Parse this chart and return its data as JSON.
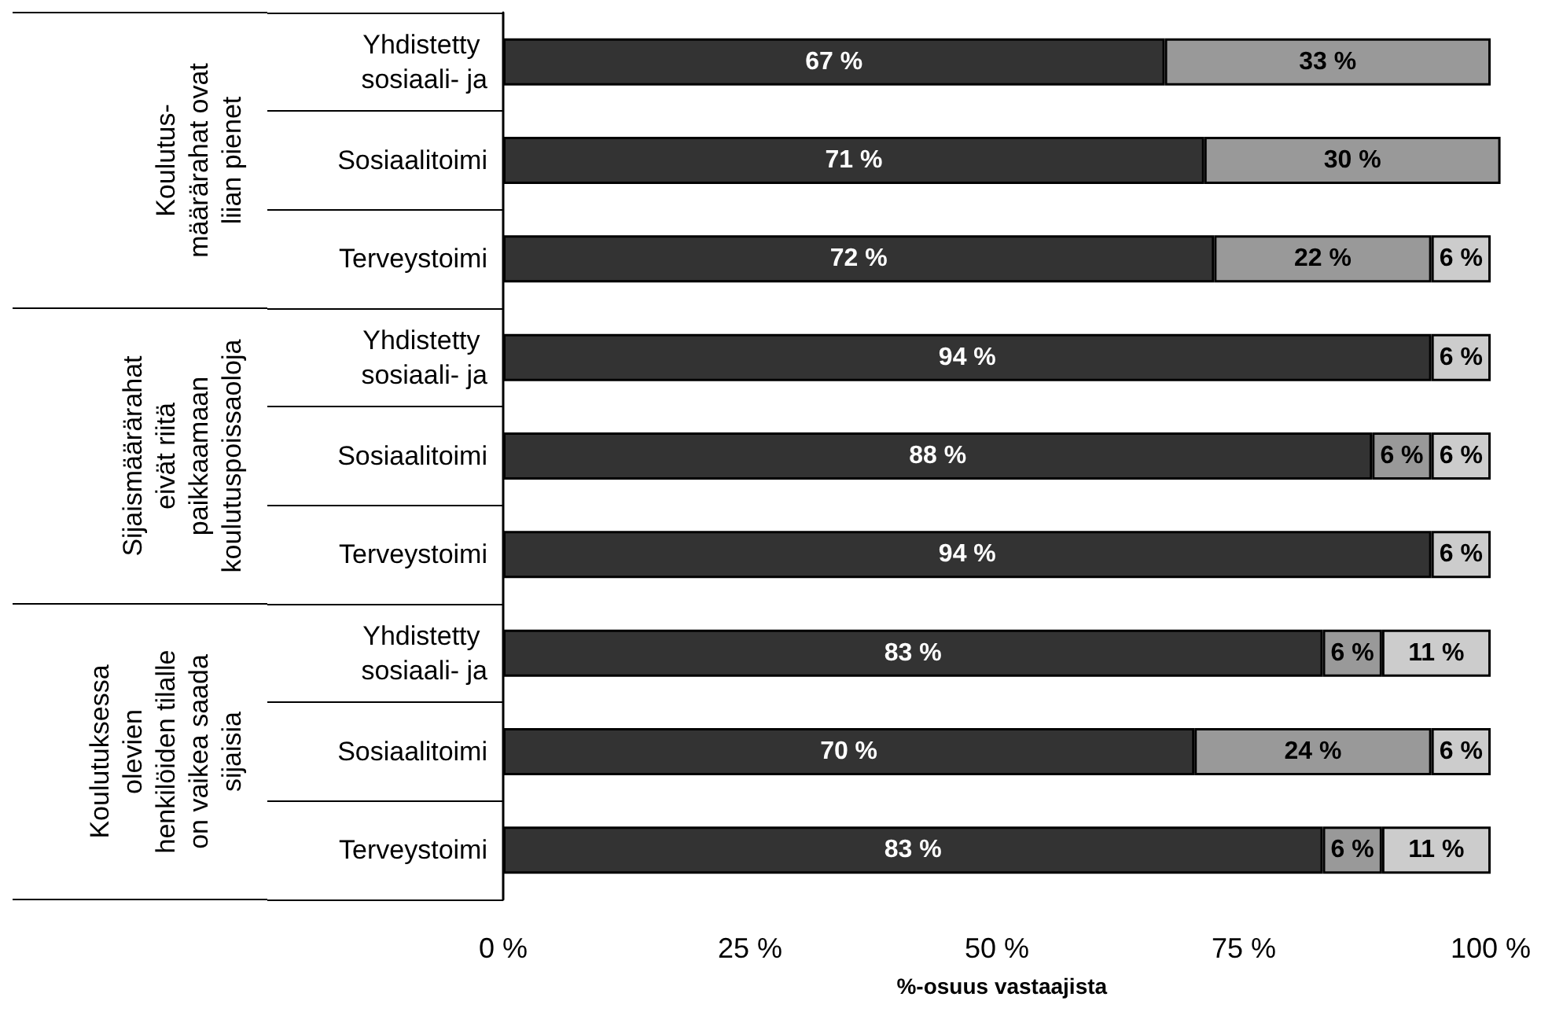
{
  "chart_data": {
    "type": "bar",
    "orientation": "horizontal",
    "stacked": true,
    "categories": [
      "Yhdistetty sosiaali- ja",
      "Sosiaalitoimi",
      "Terveystoimi",
      "Yhdistetty sosiaali- ja",
      "Sosiaalitoimi",
      "Terveystoimi",
      "Yhdistetty sosiaali- ja",
      "Sosiaalitoimi",
      "Terveystoimi"
    ],
    "series": [
      {
        "color": "#333333",
        "values": [
          67,
          71,
          72,
          94,
          88,
          94,
          83,
          70,
          83
        ],
        "value_labels": [
          "67 %",
          "71 %",
          "72 %",
          "94 %",
          "88 %",
          "94 %",
          "83 %",
          "70 %",
          "83 %"
        ]
      },
      {
        "color": "#999999",
        "values": [
          33,
          30,
          22,
          null,
          6,
          null,
          6,
          24,
          6
        ],
        "value_labels": [
          "33 %",
          "30 %",
          "22 %",
          null,
          "6 %",
          null,
          "6 %",
          "24 %",
          "6 %"
        ]
      },
      {
        "color": "#cccccc",
        "values": [
          null,
          null,
          6,
          6,
          6,
          6,
          11,
          6,
          11
        ],
        "value_labels": [
          null,
          null,
          "6 %",
          "6 %",
          "6 %",
          "6 %",
          "11 %",
          "6 %",
          "11 %"
        ]
      }
    ],
    "xlim": [
      0,
      101
    ],
    "xticks": [
      {
        "value": 0,
        "label": "0 %"
      },
      {
        "value": 25,
        "label": "25 %"
      },
      {
        "value": 50,
        "label": "50 %"
      },
      {
        "value": 75,
        "label": "75 %"
      },
      {
        "value": 100,
        "label": "100 %"
      }
    ],
    "xlabel": "%-osuus vastaajista",
    "annotations": [
      "Koulutus-\nmäärärahat ovat\nliian pienet",
      "Sijaismäärärahat\neivät riitä\npaikkaamaan\nkoulutuspoissaoloja",
      "Koulutuksessa\nolevien\nhenkilöiden tilalle\non vaikea saada\nsijaisia"
    ],
    "grid": false
  }
}
